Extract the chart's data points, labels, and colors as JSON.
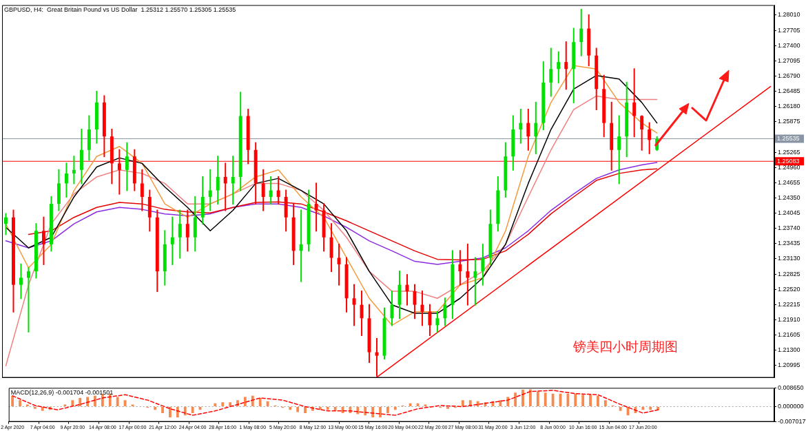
{
  "chart_data": [
    {
      "type": "candlestick",
      "title": "GBPUSD, H4:  Great Britain Pound vs US Dollar  1.25312 1.25570 1.25305 1.25535",
      "categories": [
        null,
        null,
        null,
        null,
        null,
        null,
        null,
        null,
        null,
        null,
        null,
        null,
        null,
        null,
        null,
        null,
        null,
        null,
        null,
        null,
        null,
        null,
        null,
        null,
        null,
        null,
        null,
        null,
        null,
        null,
        null,
        null,
        null,
        null,
        null,
        null,
        null,
        null,
        null,
        null,
        null,
        null,
        null,
        null,
        null,
        null,
        null,
        null,
        null,
        null,
        null,
        null,
        null,
        null,
        null,
        null,
        null,
        null,
        null,
        null,
        null,
        null,
        null,
        null,
        null,
        null,
        null,
        null,
        null,
        null,
        null,
        null,
        null,
        null,
        null,
        null,
        null,
        null,
        null,
        null,
        null,
        null,
        null,
        null,
        null,
        null,
        null,
        null,
        null,
        null,
        null,
        null,
        null,
        null,
        null,
        null,
        null,
        null,
        null,
        null,
        null,
        null
      ],
      "ohlc": [
        [
          1.2383,
          1.2403,
          1.2362,
          1.2396
        ],
        [
          1.2396,
          1.241,
          1.2207,
          1.2261
        ],
        [
          1.2261,
          1.2302,
          1.2234,
          1.2275
        ],
        [
          1.2275,
          1.2295,
          1.2167,
          1.2288
        ],
        [
          1.2288,
          1.2383,
          1.2275,
          1.2369
        ],
        [
          1.2369,
          1.2396,
          1.2302,
          1.2342
        ],
        [
          1.2342,
          1.2437,
          1.2329,
          1.2423
        ],
        [
          1.2423,
          1.2491,
          1.241,
          1.2464
        ],
        [
          1.2464,
          1.2504,
          1.2437,
          1.2484
        ],
        [
          1.2484,
          1.2518,
          1.2464,
          1.2491
        ],
        [
          1.2491,
          1.2572,
          1.2464,
          1.2531
        ],
        [
          1.2531,
          1.2599,
          1.2511,
          1.2572
        ],
        [
          1.2572,
          1.2648,
          1.2545,
          1.2626
        ],
        [
          1.2626,
          1.2639,
          1.2518,
          1.2558
        ],
        [
          1.2558,
          1.2572,
          1.2464,
          1.2504
        ],
        [
          1.2504,
          1.2531,
          1.2443,
          1.2491
        ],
        [
          1.2491,
          1.2545,
          1.245,
          1.2518
        ],
        [
          1.2518,
          1.2531,
          1.245,
          1.2464
        ],
        [
          1.2464,
          1.2491,
          1.241,
          1.2437
        ],
        [
          1.2437,
          1.245,
          1.2369,
          1.2396
        ],
        [
          1.2396,
          1.241,
          1.2248,
          1.2288
        ],
        [
          1.2288,
          1.2369,
          1.2261,
          1.2342
        ],
        [
          1.2342,
          1.2396,
          1.2302,
          1.2356
        ],
        [
          1.2356,
          1.241,
          1.2315,
          1.2383
        ],
        [
          1.2383,
          1.241,
          1.2329,
          1.2356
        ],
        [
          1.2356,
          1.2437,
          1.2329,
          1.2396
        ],
        [
          1.2396,
          1.2477,
          1.2383,
          1.2437
        ],
        [
          1.2437,
          1.2491,
          1.241,
          1.245
        ],
        [
          1.245,
          1.2518,
          1.2423,
          1.2477
        ],
        [
          1.2477,
          1.2504,
          1.241,
          1.2464
        ],
        [
          1.2464,
          1.2518,
          1.2423,
          1.2477
        ],
        [
          1.2477,
          1.2646,
          1.245,
          1.2599
        ],
        [
          1.2599,
          1.2612,
          1.2504,
          1.2531
        ],
        [
          1.2531,
          1.2545,
          1.2423,
          1.2464
        ],
        [
          1.2464,
          1.2491,
          1.241,
          1.2437
        ],
        [
          1.2437,
          1.2477,
          1.2423,
          1.245
        ],
        [
          1.245,
          1.2477,
          1.2423,
          1.2437
        ],
        [
          1.2437,
          1.245,
          1.2369,
          1.2396
        ],
        [
          1.2396,
          1.2423,
          1.2302,
          1.2329
        ],
        [
          1.2329,
          1.241,
          1.2268,
          1.2342
        ],
        [
          1.2342,
          1.245,
          1.2329,
          1.2423
        ],
        [
          1.2423,
          1.2464,
          1.2369,
          1.241
        ],
        [
          1.241,
          1.2423,
          1.2329,
          1.2356
        ],
        [
          1.2356,
          1.2383,
          1.2288,
          1.2315
        ],
        [
          1.2315,
          1.2342,
          1.2261,
          1.2302
        ],
        [
          1.2302,
          1.2315,
          1.2207,
          1.2234
        ],
        [
          1.2234,
          1.2261,
          1.218,
          1.2221
        ],
        [
          1.2221,
          1.2248,
          1.216,
          1.2194
        ],
        [
          1.2194,
          1.2221,
          1.2106,
          1.2126
        ],
        [
          1.2126,
          1.2153,
          1.2079,
          1.2119
        ],
        [
          1.2119,
          1.2214,
          1.2113,
          1.2194
        ],
        [
          1.2194,
          1.2248,
          1.218,
          1.2221
        ],
        [
          1.2221,
          1.2288,
          1.2194,
          1.2261
        ],
        [
          1.2261,
          1.2281,
          1.2221,
          1.2248
        ],
        [
          1.2248,
          1.2261,
          1.2194,
          1.2221
        ],
        [
          1.2221,
          1.2248,
          1.218,
          1.2207
        ],
        [
          1.2207,
          1.2221,
          1.216,
          1.218
        ],
        [
          1.218,
          1.2207,
          1.2167,
          1.2194
        ],
        [
          1.2194,
          1.2234,
          1.218,
          1.2221
        ],
        [
          1.2221,
          1.2329,
          1.2194,
          1.2302
        ],
        [
          1.2302,
          1.2329,
          1.2261,
          1.2288
        ],
        [
          1.2288,
          1.2342,
          1.2221,
          1.2275
        ],
        [
          1.2275,
          1.2315,
          1.2221,
          1.2288
        ],
        [
          1.2288,
          1.2342,
          1.2261,
          1.2315
        ],
        [
          1.2315,
          1.241,
          1.2302,
          1.2383
        ],
        [
          1.2383,
          1.2477,
          1.2369,
          1.245
        ],
        [
          1.245,
          1.2545,
          1.2437,
          1.2518
        ],
        [
          1.2518,
          1.2599,
          1.2491,
          1.2572
        ],
        [
          1.2572,
          1.2612,
          1.2545,
          1.2585
        ],
        [
          1.2585,
          1.2612,
          1.2531,
          1.2558
        ],
        [
          1.2558,
          1.2626,
          1.2524,
          1.2585
        ],
        [
          1.2585,
          1.2707,
          1.2572,
          1.2666
        ],
        [
          1.2666,
          1.2734,
          1.2639,
          1.2693
        ],
        [
          1.2693,
          1.2727,
          1.2666,
          1.2707
        ],
        [
          1.2707,
          1.2747,
          1.2653,
          1.2693
        ],
        [
          1.2693,
          1.2774,
          1.2626,
          1.2747
        ],
        [
          1.2747,
          1.2812,
          1.272,
          1.2774
        ],
        [
          1.2774,
          1.2801,
          1.27,
          1.272
        ],
        [
          1.272,
          1.2734,
          1.2612,
          1.2653
        ],
        [
          1.2653,
          1.268,
          1.2558,
          1.2585
        ],
        [
          1.2585,
          1.2626,
          1.2491,
          1.2531
        ],
        [
          1.2531,
          1.2599,
          1.2464,
          1.2558
        ],
        [
          1.2558,
          1.2666,
          1.2518,
          1.2626
        ],
        [
          1.2626,
          1.2693,
          1.2558,
          1.2599
        ],
        [
          1.2599,
          1.2599,
          1.2531,
          1.2572
        ],
        [
          1.2572,
          1.2585,
          1.2524,
          1.2551
        ],
        [
          1.25312,
          1.2557,
          1.25305,
          1.25535
        ],
        null,
        null,
        null,
        null,
        null,
        null,
        null,
        null,
        null,
        null,
        null,
        null,
        null,
        null,
        null
      ],
      "series": [
        {
          "type": "line",
          "color": "#000000",
          "values": [
            1.2376,
            null,
            null,
            1.2335,
            null,
            null,
            1.2356,
            null,
            null,
            1.2437,
            null,
            null,
            1.2497,
            null,
            null,
            1.2515,
            null,
            null,
            1.2504,
            null,
            null,
            1.2457,
            null,
            null,
            1.2416,
            null,
            null,
            1.2369,
            null,
            null,
            1.241,
            null,
            null,
            1.2464,
            null,
            null,
            1.2474,
            null,
            null,
            1.245,
            null,
            null,
            1.2423,
            null,
            null,
            1.2369,
            null,
            null,
            1.2288,
            null,
            null,
            1.2221,
            null,
            null,
            1.2204,
            null,
            null,
            1.2204,
            null,
            null,
            1.2234,
            null,
            null,
            1.2275,
            null,
            null,
            1.2342,
            null,
            null,
            1.2464,
            null,
            null,
            1.2572,
            null,
            null,
            1.2653,
            null,
            null,
            1.268,
            null,
            null,
            1.2673,
            null,
            null,
            1.2626,
            null,
            1.2585,
            null,
            null,
            null,
            null,
            null,
            null,
            null,
            null,
            null,
            null,
            null,
            null,
            null,
            null,
            null
          ]
        },
        {
          "type": "line",
          "color": "#f59a3c",
          "values": [
            1.2383,
            null,
            null,
            1.2295,
            null,
            null,
            1.2342,
            null,
            null,
            1.245,
            null,
            null,
            1.2518,
            null,
            null,
            1.2538,
            null,
            null,
            1.2504,
            null,
            null,
            1.2423,
            null,
            null,
            1.2396,
            null,
            null,
            1.2423,
            null,
            null,
            1.2443,
            null,
            null,
            1.2477,
            null,
            null,
            1.2491,
            null,
            null,
            1.2437,
            null,
            null,
            1.2396,
            null,
            null,
            1.2315,
            null,
            null,
            1.2234,
            null,
            null,
            1.218,
            null,
            null,
            1.2207,
            null,
            null,
            1.2207,
            null,
            null,
            1.2261,
            null,
            null,
            1.2275,
            null,
            null,
            1.2369,
            null,
            null,
            1.2518,
            null,
            null,
            1.2626,
            null,
            null,
            1.27,
            null,
            null,
            1.2693,
            null,
            null,
            1.2626,
            null,
            null,
            1.2585,
            null,
            1.2565,
            null,
            null,
            null,
            null,
            null,
            null,
            null,
            null,
            null,
            null,
            null,
            null,
            null,
            null,
            null
          ]
        },
        {
          "type": "line",
          "color": "#f08080",
          "values": [
            1.2099,
            null,
            null,
            1.2261,
            null,
            null,
            1.2383,
            null,
            null,
            1.2443,
            null,
            null,
            1.2477,
            null,
            null,
            1.2491,
            null,
            null,
            1.2484,
            null,
            null,
            1.2464,
            null,
            null,
            1.2423,
            null,
            null,
            1.2423,
            null,
            null,
            1.2443,
            null,
            null,
            1.2464,
            null,
            null,
            1.2464,
            null,
            null,
            1.245,
            null,
            null,
            1.241,
            null,
            null,
            1.2356,
            null,
            null,
            1.2288,
            null,
            null,
            1.2248,
            null,
            null,
            1.2248,
            null,
            null,
            1.2234,
            null,
            null,
            1.2261,
            null,
            null,
            1.2288,
            null,
            null,
            1.2342,
            null,
            null,
            1.2437,
            null,
            null,
            1.2531,
            null,
            null,
            1.2612,
            null,
            null,
            1.2639,
            null,
            null,
            1.2632,
            null,
            null,
            1.2632,
            null,
            1.2632,
            null,
            null,
            null,
            null,
            null,
            null,
            null,
            null,
            null,
            null,
            null,
            null,
            null,
            null,
            null
          ]
        },
        {
          "type": "line",
          "color": "#e60000",
          "values": [
            null,
            null,
            null,
            1.2362,
            null,
            null,
            1.2369,
            null,
            null,
            1.2396,
            null,
            null,
            1.2416,
            null,
            null,
            1.2426,
            null,
            null,
            1.2423,
            null,
            null,
            1.2412,
            null,
            null,
            1.2407,
            null,
            null,
            1.2405,
            null,
            null,
            1.2416,
            null,
            null,
            1.2426,
            null,
            null,
            1.2427,
            null,
            null,
            1.2423,
            null,
            null,
            1.2407,
            null,
            null,
            1.2389,
            null,
            null,
            1.2369,
            null,
            null,
            1.2349,
            null,
            null,
            1.2329,
            null,
            null,
            1.2312,
            null,
            null,
            1.2311,
            null,
            null,
            1.2312,
            null,
            null,
            1.2329,
            null,
            null,
            1.2362,
            null,
            null,
            1.2403,
            null,
            null,
            1.2437,
            null,
            null,
            1.247,
            null,
            null,
            1.2484,
            null,
            null,
            1.2491,
            null,
            1.2493,
            null,
            null,
            null,
            null,
            null,
            null,
            null,
            null,
            null,
            null,
            null,
            null,
            null,
            null,
            null
          ]
        },
        {
          "type": "line",
          "color": "#8a2be2",
          "values": [
            1.2349,
            null,
            null,
            1.2335,
            null,
            null,
            1.2349,
            null,
            null,
            1.2383,
            null,
            null,
            1.2407,
            null,
            null,
            1.2416,
            null,
            null,
            1.2412,
            null,
            null,
            1.2403,
            null,
            null,
            1.2399,
            null,
            null,
            1.2403,
            null,
            null,
            1.2416,
            null,
            null,
            1.2423,
            null,
            null,
            1.2423,
            null,
            null,
            1.2416,
            null,
            null,
            1.2399,
            null,
            null,
            1.2376,
            null,
            null,
            1.2349,
            null,
            null,
            1.2329,
            null,
            null,
            1.2308,
            null,
            null,
            1.2302,
            null,
            null,
            1.2308,
            null,
            null,
            1.2315,
            null,
            null,
            1.2335,
            null,
            null,
            1.2369,
            null,
            null,
            1.241,
            null,
            null,
            1.2443,
            null,
            null,
            1.2474,
            null,
            null,
            1.2491,
            null,
            null,
            1.2501,
            null,
            1.2506,
            null,
            null,
            null,
            null,
            null,
            null,
            null,
            null,
            null,
            null,
            null,
            null,
            null,
            null,
            null
          ]
        },
        {
          "type": "line",
          "color": "#ff0000",
          "values": [
            null,
            null,
            null,
            null,
            null,
            null,
            null,
            null,
            null,
            null,
            null,
            null,
            null,
            null,
            null,
            null,
            null,
            null,
            null,
            null,
            null,
            null,
            null,
            null,
            null,
            null,
            null,
            null,
            null,
            null,
            null,
            null,
            null,
            null,
            null,
            null,
            null,
            null,
            null,
            null,
            null,
            null,
            null,
            null,
            null,
            null,
            null,
            null,
            null,
            1.2076,
            null,
            null,
            null,
            null,
            null,
            null,
            null,
            null,
            null,
            null,
            null,
            null,
            null,
            null,
            null,
            null,
            null,
            null,
            null,
            null,
            null,
            null,
            null,
            null,
            null,
            null,
            null,
            null,
            null,
            null,
            null,
            null,
            null,
            null,
            null,
            null,
            null,
            null,
            null,
            null,
            null,
            null,
            null,
            null,
            null,
            null,
            null,
            null,
            null,
            null,
            null,
            1.2658
          ]
        }
      ],
      "ylim": [
        1.2075,
        1.2821
      ],
      "yticks": [
        {
          "value": 1.2801,
          "label": "1.28010"
        },
        {
          "value": 1.27705,
          "label": "1.27705"
        },
        {
          "value": 1.274,
          "label": "1.27400"
        },
        {
          "value": 1.27095,
          "label": "1.27095"
        },
        {
          "value": 1.2679,
          "label": "1.26790"
        },
        {
          "value": 1.26485,
          "label": "1.26485"
        },
        {
          "value": 1.2618,
          "label": "1.26180"
        },
        {
          "value": 1.25875,
          "label": "1.25875"
        },
        {
          "value": 1.25265,
          "label": "1.25265"
        },
        {
          "value": 1.2496,
          "label": "1.24960"
        },
        {
          "value": 1.24655,
          "label": "1.24655"
        },
        {
          "value": 1.2435,
          "label": "1.24350"
        },
        {
          "value": 1.24045,
          "label": "1.24045"
        },
        {
          "value": 1.2374,
          "label": "1.23740"
        },
        {
          "value": 1.23435,
          "label": "1.23435"
        },
        {
          "value": 1.2313,
          "label": "1.23130"
        },
        {
          "value": 1.22825,
          "label": "1.22825"
        },
        {
          "value": 1.2252,
          "label": "1.22520"
        },
        {
          "value": 1.22215,
          "label": "1.22215"
        },
        {
          "value": 1.2191,
          "label": "1.21910"
        },
        {
          "value": 1.21605,
          "label": "1.21605"
        },
        {
          "value": 1.213,
          "label": "1.21300"
        },
        {
          "value": 1.20995,
          "label": "1.20995"
        }
      ],
      "ref_lines": [
        {
          "axis": "y",
          "value": 1.25083,
          "label": "1.25083",
          "color": "#ff0000"
        },
        {
          "axis": "y",
          "value": 1.25535,
          "label": "1.25535",
          "color": "#8a96a6"
        }
      ],
      "annotations": [
        "镑美四小时周期图"
      ],
      "tick_labels": "y"
    },
    {
      "type": "bar",
      "title": "MACD(12,26,9) -0.001704 -0.001501",
      "categories": [
        "2 Apr 2020",
        null,
        null,
        null,
        "7 Apr 04:00",
        null,
        null,
        null,
        "9 Apr 20:00",
        null,
        null,
        null,
        "14 Apr 08:00",
        null,
        null,
        null,
        "17 Apr 00:00",
        null,
        null,
        null,
        "21 Apr 12:00",
        null,
        null,
        null,
        "24 Apr 04:00",
        null,
        null,
        null,
        "28 Apr 16:00",
        null,
        null,
        null,
        "1 May 08:00",
        null,
        null,
        null,
        "5 May 20:00",
        null,
        null,
        null,
        "8 May 12:00",
        null,
        null,
        null,
        "13 May 00:00",
        null,
        null,
        null,
        "15 May 16:00",
        null,
        null,
        null,
        "20 May 04:00",
        null,
        null,
        null,
        "22 May 20:00",
        null,
        null,
        null,
        "27 May 08:00",
        null,
        null,
        null,
        "31 May 20:00",
        null,
        null,
        null,
        "3 Jun 12:00",
        null,
        null,
        null,
        "8 Jun 00:00",
        null,
        null,
        null,
        "10 Jun 16:00",
        null,
        null,
        null,
        "15 Jun 04:00",
        null,
        null,
        null,
        "17 Jun 20:00",
        null,
        null,
        null,
        null,
        null,
        null,
        null,
        null,
        null,
        null,
        null,
        null,
        null,
        null,
        null,
        null,
        null
      ],
      "values": [
        0.005,
        0.003,
        0.001,
        -0.001,
        -0.002,
        -0.0015,
        0,
        0.001,
        0.003,
        0.004,
        0.0045,
        0.005,
        0.0058,
        0.006,
        0.0045,
        0.003,
        0.001,
        0,
        -0.0005,
        -0.0015,
        -0.003,
        -0.005,
        -0.005,
        -0.004,
        -0.003,
        -0.0015,
        0,
        0.0015,
        0.002,
        0.002,
        0.003,
        0.0045,
        0.005,
        0.004,
        0.0025,
        0.0005,
        -0.0005,
        -0.0015,
        -0.0025,
        -0.003,
        -0.002,
        -0.0015,
        -0.0015,
        -0.002,
        -0.003,
        -0.003,
        -0.0035,
        -0.004,
        -0.005,
        -0.005,
        -0.003,
        -0.0015,
        0.0005,
        0.0015,
        0.0015,
        0.001,
        0,
        -0.0005,
        -0.001,
        -0.0005,
        0.003,
        0.003,
        0.0025,
        0.002,
        0.0025,
        0.003,
        0.0045,
        0.0065,
        0.0078,
        0.008,
        0.007,
        0.0065,
        0.006,
        0.006,
        0.006,
        0.006,
        0.0055,
        0.0055,
        0.005,
        0.003,
        0.0005,
        -0.002,
        -0.004,
        -0.003,
        -0.0015,
        -0.0015,
        -0.0017,
        null,
        null,
        null,
        null,
        null,
        null,
        null,
        null,
        null,
        null,
        null,
        null,
        null,
        null,
        null
      ],
      "color": "#f7894f",
      "series": [
        {
          "type": "line",
          "color": "#ff0000",
          "line_style": "dashed",
          "values": [
            0.005,
            null,
            null,
            0.0005,
            null,
            null,
            -0.0015,
            null,
            null,
            0.001,
            null,
            null,
            0.004,
            null,
            null,
            0.0055,
            null,
            null,
            0.003,
            null,
            null,
            -0.001,
            null,
            null,
            -0.004,
            null,
            null,
            -0.002,
            null,
            null,
            0.001,
            null,
            null,
            0.004,
            null,
            null,
            0.003,
            null,
            null,
            0,
            null,
            null,
            -0.002,
            null,
            null,
            -0.002,
            null,
            null,
            -0.003,
            null,
            null,
            -0.004,
            null,
            null,
            -0.001,
            null,
            null,
            0.0005,
            null,
            null,
            0,
            null,
            null,
            0.0015,
            null,
            null,
            0.003,
            null,
            null,
            0.007,
            null,
            null,
            0.0075,
            null,
            null,
            0.006,
            null,
            null,
            0.0055,
            null,
            null,
            0.001,
            null,
            null,
            -0.003,
            null,
            -0.0015,
            null,
            null,
            null,
            null,
            null,
            null,
            null,
            null,
            null,
            null,
            null,
            null,
            null,
            null,
            null
          ]
        }
      ],
      "ylim": [
        -0.007017,
        0.00865
      ],
      "yticks": [
        {
          "value": 0.00865,
          "label": "0.008650"
        },
        {
          "value": 0,
          "label": "0.000000"
        },
        {
          "value": -0.007017,
          "label": "-0.007017"
        }
      ],
      "ref_lines": [
        {
          "axis": "y",
          "value": 0,
          "color": "#a0a0a0",
          "line_style": "dotted"
        }
      ]
    }
  ]
}
